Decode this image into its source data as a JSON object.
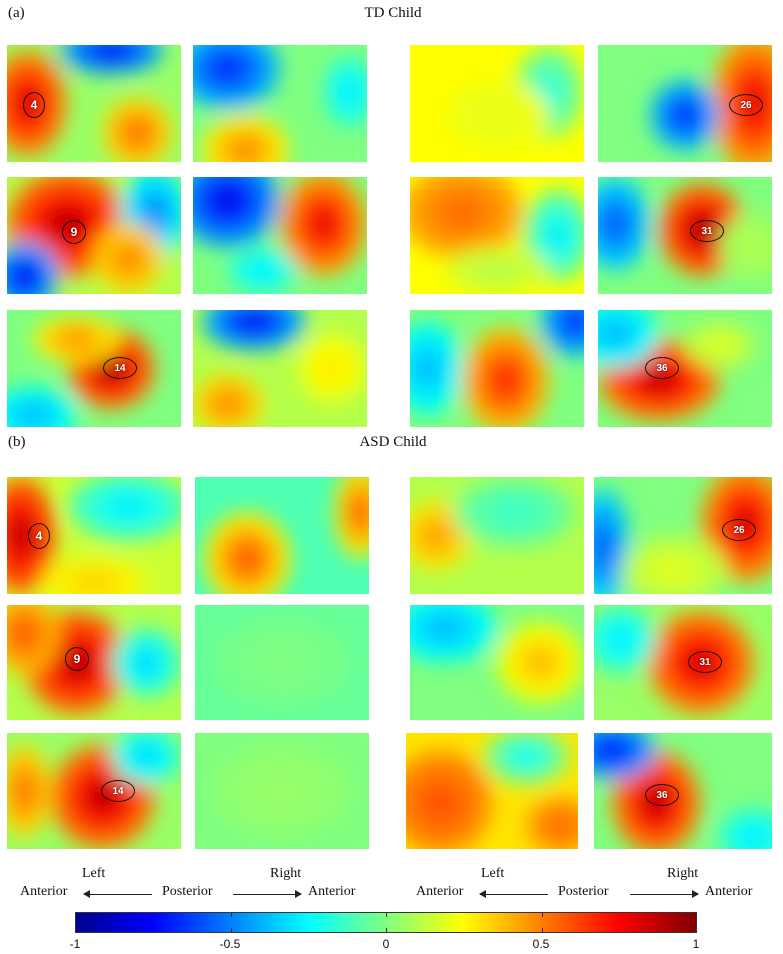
{
  "panels": [
    {
      "label": "(a)",
      "title": "TD Child"
    },
    {
      "label": "(b)",
      "title": "ASD Child"
    }
  ],
  "markers": [
    "4",
    "26",
    "9",
    "31",
    "14",
    "36",
    "4",
    "26",
    "9",
    "31",
    "14",
    "36"
  ],
  "orientation": {
    "left": "Left",
    "right": "Right",
    "anterior": "Anterior",
    "posterior": "Posterior"
  },
  "colorbar": {
    "ticks": [
      "-1",
      "-0.5",
      "0",
      "0.5",
      "1"
    ],
    "range": [
      -1,
      1
    ],
    "colormap": "jet"
  }
}
